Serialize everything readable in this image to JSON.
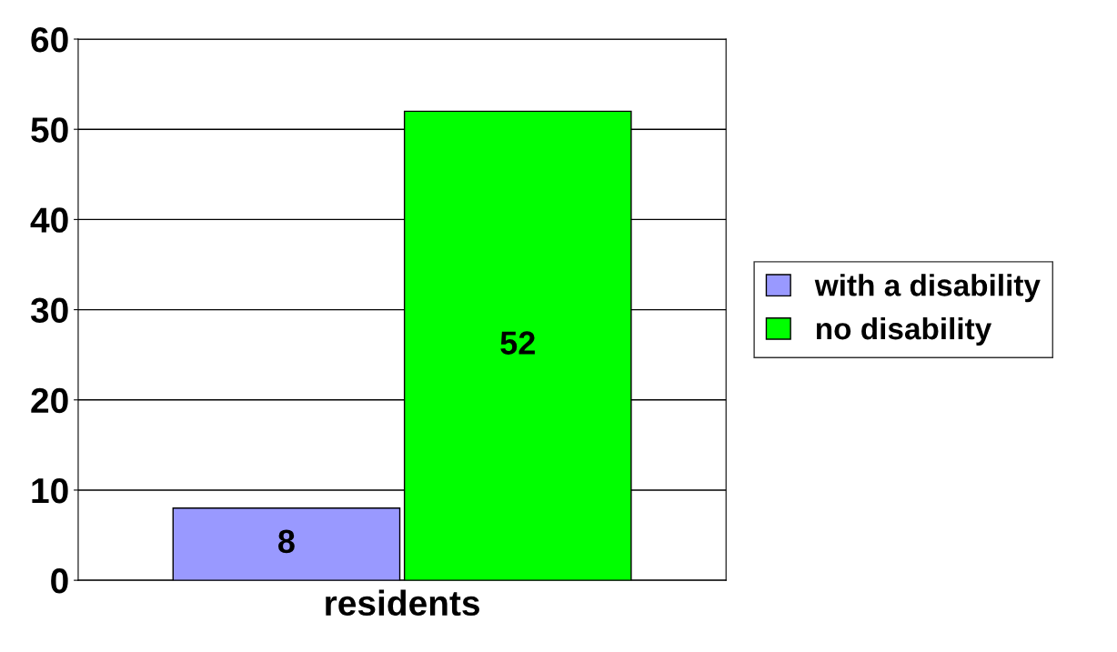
{
  "chart_data": {
    "type": "bar",
    "categories": [
      null,
      null
    ],
    "xlabel": "residents",
    "stacked": true,
    "series": [
      {
        "name": "with a disability",
        "color": "#9999ff",
        "values": [
          8,
          null
        ]
      },
      {
        "name": "no disability",
        "color": "#00ff00",
        "values": [
          null,
          52
        ]
      }
    ],
    "ylim": [
      0,
      60
    ],
    "yticks": [
      0,
      10,
      20,
      30,
      40,
      50,
      60
    ],
    "grid": "y",
    "legend": "right",
    "data_labels": true
  }
}
